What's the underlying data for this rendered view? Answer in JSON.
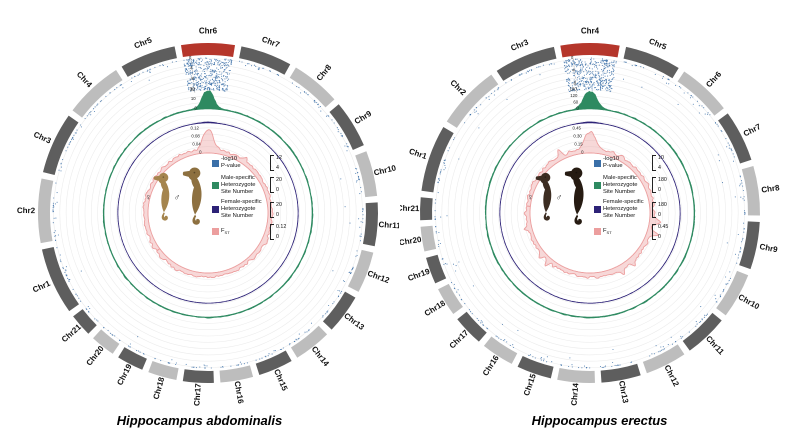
{
  "chart_data": [
    {
      "type": "circos",
      "species": "Hippocampus abdominalis",
      "caption": "Hippocampus abdominalis",
      "female_symbol": "♀",
      "male_symbol": "♂",
      "highlight_chromosome": "Chr6",
      "chromosomes": [
        "Chr1",
        "Chr2",
        "Chr3",
        "Chr4",
        "Chr5",
        "Chr6",
        "Chr7",
        "Chr8",
        "Chr9",
        "Chr10",
        "Chr11",
        "Chr12",
        "Chr13",
        "Chr14",
        "Chr15",
        "Chr16",
        "Chr17",
        "Chr18",
        "Chr19",
        "Chr20",
        "Chr21"
      ],
      "chrom_weights": [
        10,
        9.6,
        9.2,
        8.8,
        8.4,
        8.0,
        7.7,
        7.4,
        7.1,
        6.8,
        6.5,
        6.2,
        5.9,
        5.6,
        5.2,
        4.9,
        4.6,
        4.3,
        4.0,
        3.7,
        3.4
      ],
      "ideogram_colors": {
        "dark": "#5e5e5e",
        "light": "#bdbdbd",
        "highlight": "#b5362b"
      },
      "seahorse_colors": [
        "#a5854e",
        "#8d7040"
      ],
      "tracks": [
        {
          "id": "pvalue",
          "kind": "scatter",
          "color": "#3a6fa8",
          "label": "-log10\nP-value",
          "legend_top": "12",
          "legend_bottom": "4",
          "max": 12,
          "axis_ticks": [
            "12",
            "8",
            "4",
            "0"
          ],
          "peak_chromosome": "Chr6",
          "outlier_rate": 0.05,
          "seed": 11
        },
        {
          "id": "het-male",
          "kind": "area",
          "color": "#2e8a61",
          "label": "Male-specific\nHeterozygote\nSite Number",
          "legend_top": "20",
          "legend_bottom": "0",
          "max": 20,
          "axis_ticks": [
            "20",
            "10",
            "0"
          ],
          "peak_chromosome": "Chr6",
          "seed": 12
        },
        {
          "id": "het-female",
          "kind": "area",
          "color": "#2d2277",
          "label": "Female-specific\nHeterozygote\nSite Number",
          "legend_top": "20",
          "legend_bottom": "0",
          "max": 20,
          "peak_chromosome": "Chr6",
          "seed": 13
        },
        {
          "id": "fst",
          "kind": "line",
          "color": "#ec9e9e",
          "label": "F",
          "label_sub": "ST",
          "legend_top": "0.12",
          "legend_bottom": "0",
          "max": 0.12,
          "axis_ticks": [
            "0.12",
            "0.08",
            "0.04",
            "0"
          ],
          "peak_chromosome": "Chr6",
          "extra_bumps": 3,
          "seed": 14
        }
      ]
    },
    {
      "type": "circos",
      "species": "Hippocampus erectus",
      "caption": "Hippocampus erectus",
      "female_symbol": "♀",
      "male_symbol": "♂",
      "highlight_chromosome": "Chr4",
      "chromosomes": [
        "Chr1",
        "Chr2",
        "Chr3",
        "Chr4",
        "Chr5",
        "Chr6",
        "Chr7",
        "Chr8",
        "Chr9",
        "Chr10",
        "Chr11",
        "Chr12",
        "Chr13",
        "Chr14",
        "Chr15",
        "Chr16",
        "Chr17",
        "Chr18",
        "Chr19",
        "Chr20",
        "Chr21"
      ],
      "chrom_weights": [
        10,
        9.6,
        9.2,
        8.8,
        8.4,
        8.0,
        7.7,
        7.4,
        7.1,
        6.8,
        6.5,
        6.2,
        5.9,
        5.6,
        5.2,
        4.9,
        4.6,
        4.3,
        4.0,
        3.7,
        3.4
      ],
      "ideogram_colors": {
        "dark": "#5e5e5e",
        "light": "#bdbdbd",
        "highlight": "#b5362b"
      },
      "seahorse_colors": [
        "#3c2d22",
        "#261b12"
      ],
      "tracks": [
        {
          "id": "pvalue",
          "kind": "scatter",
          "color": "#3a6fa8",
          "label": "-log10\nP-value",
          "legend_top": "10",
          "legend_bottom": "4",
          "max": 10,
          "axis_ticks": [
            "8",
            "4",
            "0"
          ],
          "peak_chromosome": "Chr4",
          "outlier_rate": 0.1,
          "seed": 21
        },
        {
          "id": "het-male",
          "kind": "area",
          "color": "#2e8a61",
          "label": "Male-specific\nHeterozygote\nSite Number",
          "legend_top": "180",
          "legend_bottom": "0",
          "max": 180,
          "axis_ticks": [
            "180",
            "120",
            "60",
            "0"
          ],
          "peak_chromosome": "Chr4",
          "seed": 22
        },
        {
          "id": "het-female",
          "kind": "area",
          "color": "#2d2277",
          "label": "Female-specific\nHeterozygote\nSite Number",
          "legend_top": "180",
          "legend_bottom": "0",
          "max": 180,
          "peak_chromosome": "Chr4",
          "seed": 23
        },
        {
          "id": "fst",
          "kind": "line",
          "color": "#ec9e9e",
          "label": "F",
          "label_sub": "ST",
          "legend_top": "0.45",
          "legend_bottom": "0",
          "max": 0.45,
          "axis_ticks": [
            "0.45",
            "0.30",
            "0.15",
            "0"
          ],
          "peak_chromosome": "Chr4",
          "extra_bumps": 8,
          "seed": 24
        }
      ]
    }
  ]
}
